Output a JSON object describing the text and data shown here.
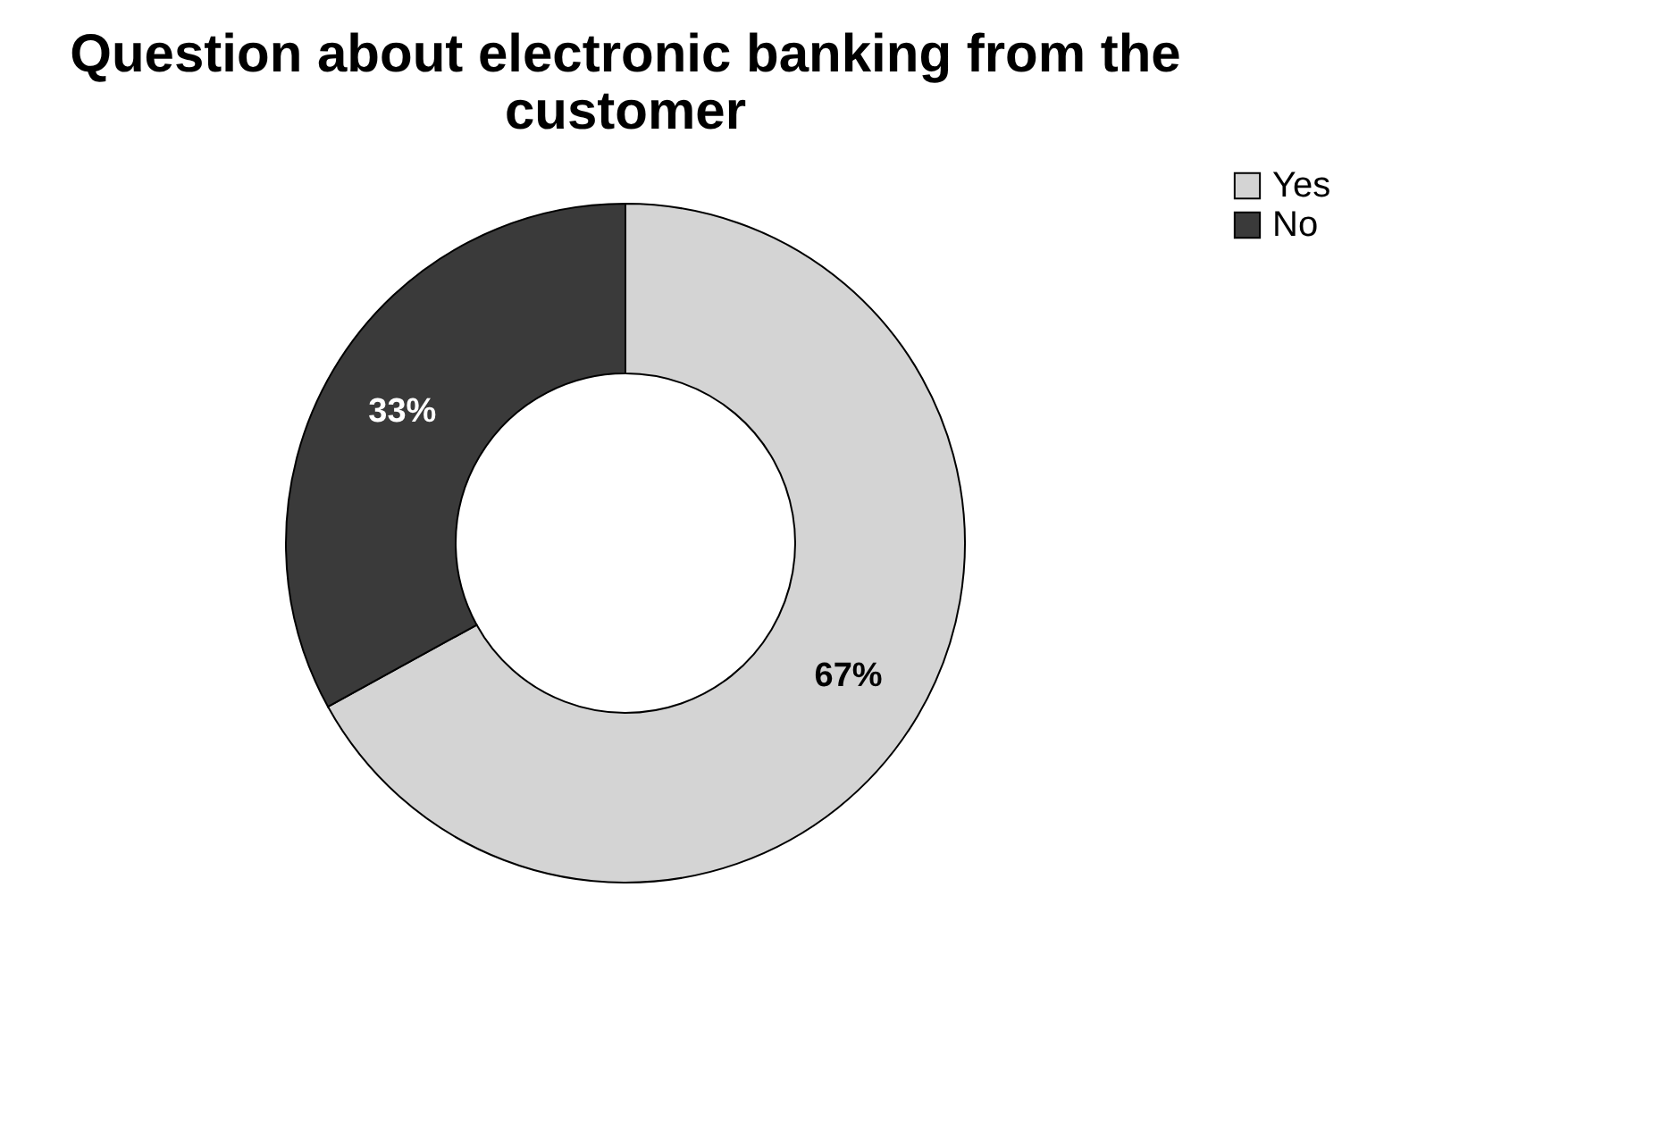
{
  "chart_data": {
    "type": "donut",
    "title": "Question about electronic banking from the customer",
    "categories": [
      "Yes",
      "No"
    ],
    "values": [
      67,
      33
    ],
    "colors": [
      "#d4d4d4",
      "#3a3a3a"
    ],
    "value_labels": [
      "67%",
      "33%"
    ],
    "legend": "right"
  }
}
